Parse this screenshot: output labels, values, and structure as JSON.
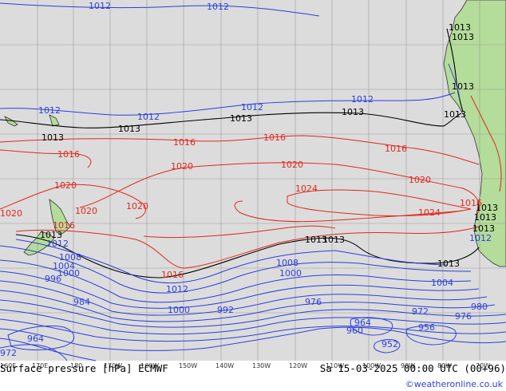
{
  "colors": {
    "background": "#dcdcdc",
    "land": "#b4dc9a",
    "coast": "#333333",
    "low_isobar": "#2b3fdc",
    "high_isobar": "#e0281c",
    "standard_isobar": "#000000",
    "grid": "#9a9a9a"
  },
  "isobar_labels": [
    {
      "text": "1012",
      "color": "blue"
    },
    {
      "text": "1012",
      "color": "blue"
    },
    {
      "text": "1013",
      "color": "black"
    },
    {
      "text": "1013",
      "color": "black"
    },
    {
      "text": "1012",
      "color": "blue"
    },
    {
      "text": "1012",
      "color": "blue"
    },
    {
      "text": "1012",
      "color": "blue"
    },
    {
      "text": "1012",
      "color": "blue"
    },
    {
      "text": "1013",
      "color": "black"
    },
    {
      "text": "1013",
      "color": "black"
    },
    {
      "text": "1013",
      "color": "black"
    },
    {
      "text": "1013",
      "color": "black"
    },
    {
      "text": "1013",
      "color": "black"
    },
    {
      "text": "1013",
      "color": "black"
    },
    {
      "text": "1016",
      "color": "red"
    },
    {
      "text": "1016",
      "color": "red"
    },
    {
      "text": "1016",
      "color": "red"
    },
    {
      "text": "1016",
      "color": "red"
    },
    {
      "text": "1020",
      "color": "red"
    },
    {
      "text": "1020",
      "color": "red"
    },
    {
      "text": "1020",
      "color": "red"
    },
    {
      "text": "1020",
      "color": "red"
    },
    {
      "text": "1020",
      "color": "red"
    },
    {
      "text": "1020",
      "color": "red"
    },
    {
      "text": "1020",
      "color": "red"
    },
    {
      "text": "1024",
      "color": "red"
    },
    {
      "text": "1024",
      "color": "red"
    },
    {
      "text": "1016",
      "color": "red"
    },
    {
      "text": "1013",
      "color": "black"
    },
    {
      "text": "1012",
      "color": "blue"
    },
    {
      "text": "1008",
      "color": "blue"
    },
    {
      "text": "1004",
      "color": "blue"
    },
    {
      "text": "1000",
      "color": "blue"
    },
    {
      "text": "996",
      "color": "blue"
    },
    {
      "text": "1016",
      "color": "red"
    },
    {
      "text": "1012",
      "color": "blue"
    },
    {
      "text": "1013",
      "color": "black"
    },
    {
      "text": "1013",
      "color": "black"
    },
    {
      "text": "1008",
      "color": "blue"
    },
    {
      "text": "1000",
      "color": "blue"
    },
    {
      "text": "1004",
      "color": "blue"
    },
    {
      "text": "1000",
      "color": "blue"
    },
    {
      "text": "992",
      "color": "blue"
    },
    {
      "text": "984",
      "color": "blue"
    },
    {
      "text": "976",
      "color": "blue"
    },
    {
      "text": "964",
      "color": "blue"
    },
    {
      "text": "960",
      "color": "blue"
    },
    {
      "text": "952",
      "color": "blue"
    },
    {
      "text": "956",
      "color": "blue"
    },
    {
      "text": "972",
      "color": "blue"
    },
    {
      "text": "976",
      "color": "blue"
    },
    {
      "text": "980",
      "color": "blue"
    },
    {
      "text": "964",
      "color": "blue"
    },
    {
      "text": "972",
      "color": "blue"
    },
    {
      "text": "1013",
      "color": "black"
    },
    {
      "text": "1013",
      "color": "black"
    },
    {
      "text": "1013",
      "color": "black"
    },
    {
      "text": "1013",
      "color": "black"
    },
    {
      "text": "1016",
      "color": "red"
    },
    {
      "text": "1012",
      "color": "blue"
    }
  ],
  "lon_labels": [
    "160E",
    "170E",
    "180",
    "170W",
    "160W",
    "150W",
    "140W",
    "130W",
    "120W",
    "110W",
    "100W",
    "90W",
    "80W",
    "70W"
  ],
  "footer": {
    "title": "Surface pressure [hPa] ECMWF",
    "valid_time": "Sa 15-03-2025 00:00 UTC (00+96)",
    "credit": "©weatheronline.co.uk"
  }
}
